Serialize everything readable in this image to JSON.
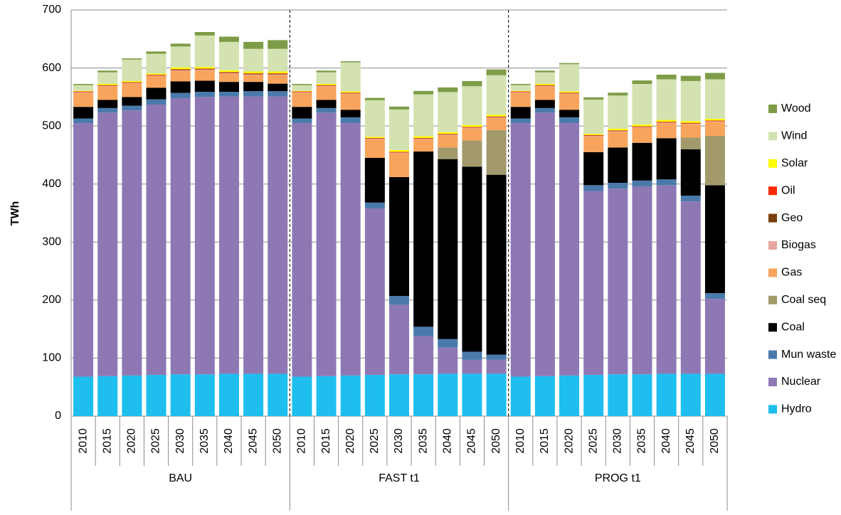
{
  "chart_data": {
    "type": "bar",
    "stacked": true,
    "y_label": "TWh",
    "categories": [
      "2010",
      "2015",
      "2020",
      "2025",
      "2030",
      "2035",
      "2040",
      "2045",
      "2050",
      "2010",
      "2015",
      "2020",
      "2025",
      "2030",
      "2035",
      "2040",
      "2045",
      "2050",
      "2010",
      "2015",
      "2020",
      "2025",
      "2030",
      "2035",
      "2040",
      "2045",
      "2050"
    ],
    "groups": [
      "BAU",
      "FAST t1",
      "PROG t1"
    ],
    "ylim": [
      0,
      700
    ],
    "yticks": [
      0,
      100,
      200,
      300,
      400,
      500,
      600,
      700
    ],
    "grid": true,
    "legend": "right",
    "series": [
      {
        "name": "Hydro",
        "color": "#1ebeef",
        "values": [
          68,
          69,
          70,
          71,
          72,
          72,
          73,
          73,
          73,
          68,
          69,
          70,
          71,
          72,
          72,
          73,
          73,
          73,
          68,
          69,
          70,
          71,
          72,
          72,
          73,
          73,
          73
        ]
      },
      {
        "name": "Nuclear",
        "color": "#8e78b4",
        "values": [
          437,
          454,
          457,
          466,
          476,
          478,
          478,
          478,
          478,
          437,
          454,
          435,
          287,
          120,
          66,
          45,
          24,
          24,
          437,
          454,
          435,
          317,
          320,
          324,
          325,
          297,
          129
        ]
      },
      {
        "name": "Mun waste",
        "color": "#4a7aab",
        "values": [
          8,
          8,
          8,
          9,
          9,
          9,
          8,
          9,
          9,
          8,
          8,
          10,
          10,
          15,
          16,
          15,
          14,
          9,
          8,
          8,
          10,
          10,
          10,
          10,
          10,
          10,
          10
        ]
      },
      {
        "name": "Coal",
        "color": "#000000",
        "values": [
          20,
          14,
          15,
          20,
          20,
          19,
          17,
          16,
          13,
          20,
          14,
          13,
          77,
          205,
          302,
          310,
          319,
          310,
          20,
          14,
          13,
          57,
          61,
          65,
          71,
          80,
          186
        ]
      },
      {
        "name": "Coal seq",
        "color": "#a39a6b",
        "values": [
          0,
          0,
          0,
          0,
          0,
          0,
          0,
          0,
          0,
          0,
          0,
          0,
          0,
          0,
          0,
          20,
          45,
          77,
          0,
          0,
          0,
          0,
          0,
          0,
          0,
          20,
          85
        ]
      },
      {
        "name": "Gas",
        "color": "#f9a45c",
        "values": [
          24,
          23,
          23,
          20,
          18,
          18,
          14,
          12,
          15,
          24,
          23,
          27,
          32,
          41,
          21,
          21,
          21,
          21,
          24,
          23,
          27,
          27,
          27,
          26,
          26,
          23,
          24
        ]
      },
      {
        "name": "Biogas",
        "color": "#e6a6a0",
        "values": [
          1,
          1,
          1,
          1,
          1,
          1,
          1,
          1,
          1,
          1,
          1,
          1,
          1,
          1,
          1,
          1,
          1,
          1,
          1,
          1,
          1,
          1,
          1,
          1,
          1,
          1,
          1
        ]
      },
      {
        "name": "Geo",
        "color": "#7a3f0a",
        "values": [
          0.5,
          0.5,
          0.5,
          0.5,
          1,
          1,
          1,
          1,
          1,
          0.5,
          0.5,
          0.5,
          0.5,
          0.5,
          0.5,
          0.5,
          0.5,
          0.5,
          0.5,
          0.5,
          0.5,
          0.5,
          0.5,
          0.5,
          0.5,
          0.5,
          0.5
        ]
      },
      {
        "name": "Oil",
        "color": "#ff2a00",
        "values": [
          1,
          1,
          1,
          1,
          1,
          1,
          1,
          1,
          1,
          1,
          1,
          1,
          1,
          1,
          1,
          1,
          1,
          1,
          1,
          1,
          1,
          1,
          1,
          1,
          1,
          1,
          1
        ]
      },
      {
        "name": "Solar",
        "color": "#ffff00",
        "values": [
          1,
          2,
          2,
          2,
          3,
          3,
          3,
          3,
          3,
          1,
          2,
          2,
          2,
          3,
          3,
          3,
          3,
          3,
          1,
          2,
          2,
          2,
          3,
          3,
          3,
          3,
          3
        ]
      },
      {
        "name": "Wind",
        "color": "#d3e2b0",
        "values": [
          10,
          20,
          37,
          34,
          36,
          54,
          49,
          39,
          39,
          10,
          20,
          50,
          63,
          70,
          72,
          69,
          67,
          68,
          10,
          20,
          47,
          59,
          57,
          70,
          70,
          69,
          68
        ]
      },
      {
        "name": "Wood",
        "color": "#7e9c47",
        "values": [
          2,
          3,
          2,
          4,
          5,
          6,
          9,
          12,
          15,
          2,
          3,
          2,
          4,
          5,
          6,
          8,
          9,
          10,
          2,
          3,
          2,
          4,
          5,
          6,
          8,
          9,
          11
        ]
      }
    ]
  }
}
